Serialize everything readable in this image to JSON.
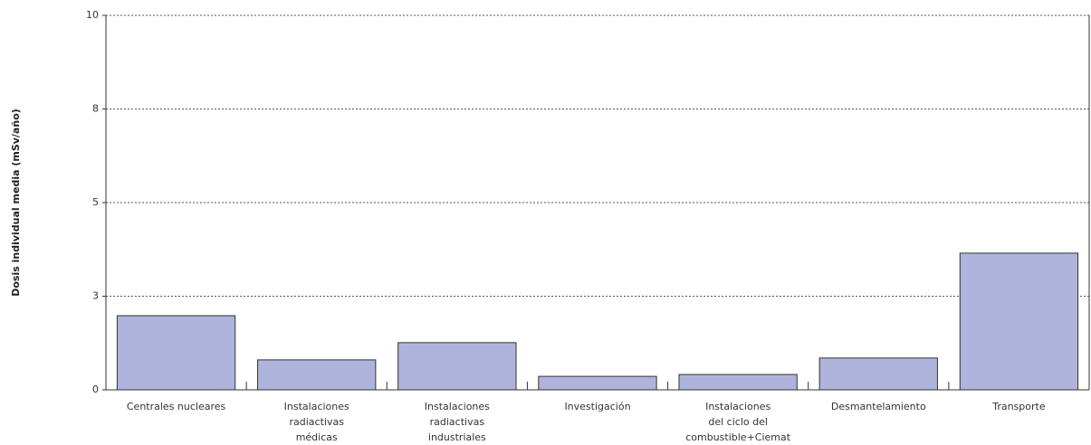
{
  "chart_data": {
    "type": "bar",
    "y_label": "Dosis individual media (mSv/año)",
    "categories": [
      [
        "Centrales nucleares"
      ],
      [
        "Instalaciones",
        "radiactivas",
        "médicas"
      ],
      [
        "Instalaciones",
        "radiactivas",
        "industriales"
      ],
      [
        "Investigación"
      ],
      [
        "Instalaciones",
        "del ciclo del",
        "combustible+Ciemat"
      ],
      [
        "Desmantelamiento"
      ],
      [
        "Transporte"
      ]
    ],
    "values": [
      1.98,
      0.8,
      1.26,
      0.36,
      0.41,
      0.85,
      3.65
    ],
    "color": "#aeb4dc",
    "ylim": [
      0,
      10
    ],
    "yticks": [
      0,
      {
        "value": 2.5,
        "label": "3"
      },
      5,
      {
        "value": 7.5,
        "label": "8"
      },
      10
    ],
    "grid": true
  }
}
